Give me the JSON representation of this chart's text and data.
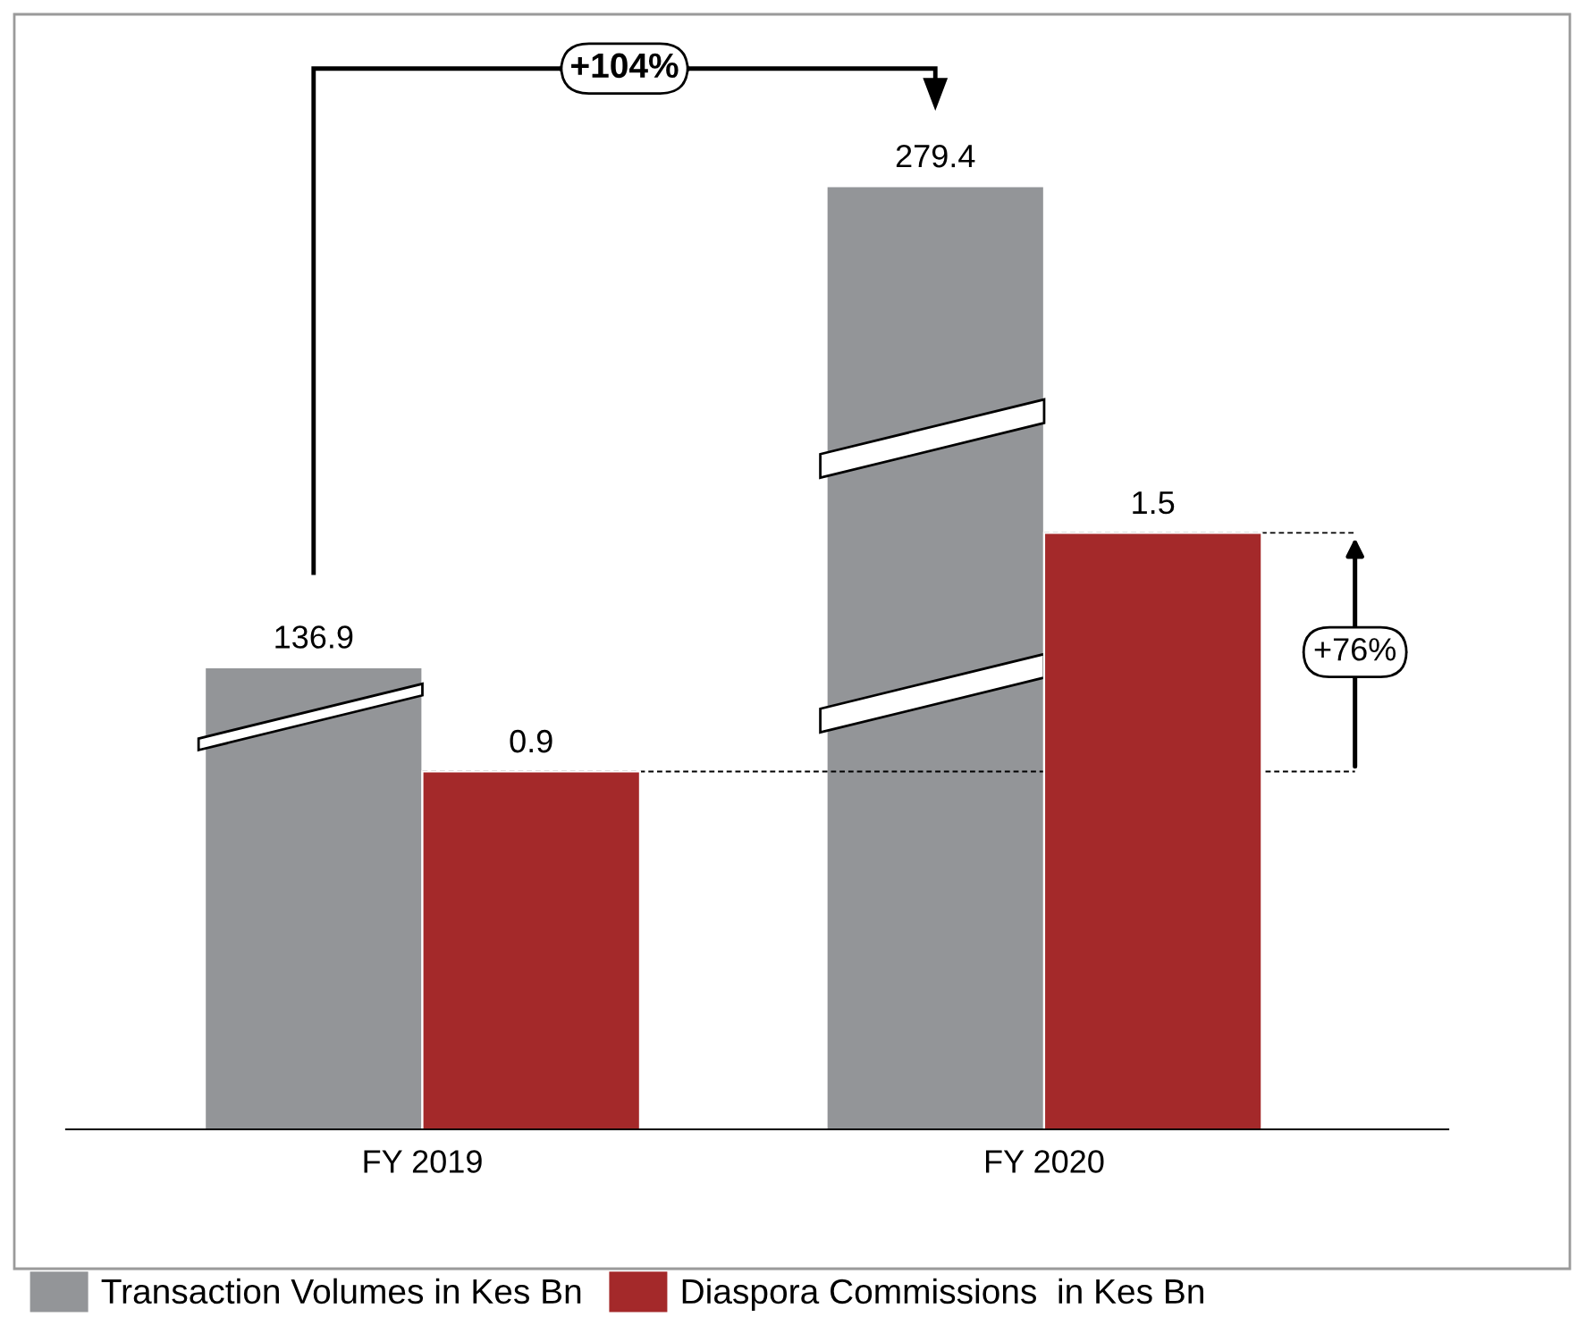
{
  "chart_data": {
    "type": "bar",
    "categories": [
      "FY 2019",
      "FY 2020"
    ],
    "series": [
      {
        "name": "Transaction Volumes in Kes Bn",
        "color": "#939598",
        "values": [
          136.9,
          279.4
        ],
        "axis": "y2"
      },
      {
        "name": "Diaspora Commissions  in Kes Bn",
        "color": "#a4292a",
        "values": [
          0.9,
          1.5
        ]
      }
    ],
    "ylim": [
      0,
      2.75
    ],
    "y2lim": [
      0,
      324
    ],
    "tick_labels": "x",
    "data_labels": true,
    "grid": false,
    "legend": "bottom",
    "ref_lines": [
      {
        "axis": "y",
        "value": 0.9,
        "line_style": "dashed",
        "color": "#000000"
      },
      {
        "axis": "y",
        "value": 1.5,
        "line_style": "dashed",
        "color": "#000000"
      }
    ],
    "annotations": [
      "+104%",
      "+76%"
    ]
  }
}
